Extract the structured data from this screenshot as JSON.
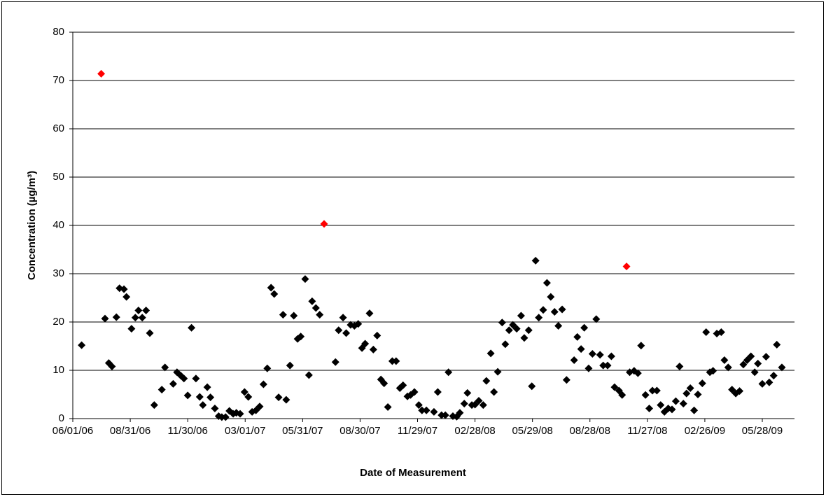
{
  "chart_data": {
    "type": "scatter",
    "xlabel": "Date of Measurement",
    "ylabel": "Concentration (µg/m³)",
    "xlim": [
      "06/01/06",
      "07/18/09"
    ],
    "xticks": [
      "06/01/06",
      "08/31/06",
      "11/30/06",
      "03/01/07",
      "05/31/07",
      "08/30/07",
      "11/29/07",
      "02/28/08",
      "05/29/08",
      "08/28/08",
      "11/27/08",
      "02/26/09",
      "05/28/09"
    ],
    "ylim": [
      0,
      80
    ],
    "yticks": [
      0,
      10,
      20,
      30,
      40,
      50,
      60,
      70,
      80
    ],
    "grid": true,
    "series": [
      {
        "color": "#000000",
        "x": [
          "06/15/06",
          "07/22/06",
          "07/28/06",
          "08/02/06",
          "08/09/06",
          "08/14/06",
          "08/21/06",
          "08/25/06",
          "09/02/06",
          "09/08/06",
          "09/13/06",
          "09/19/06",
          "09/25/06",
          "10/01/06",
          "10/08/06",
          "10/20/06",
          "10/25/06",
          "11/07/06",
          "11/13/06",
          "11/19/06",
          "11/24/06",
          "11/30/06",
          "12/06/06",
          "12/13/06",
          "12/19/06",
          "12/24/06",
          "12/31/06",
          "01/05/07",
          "01/12/07",
          "01/18/07",
          "01/23/07",
          "01/29/07",
          "02/04/07",
          "02/10/07",
          "02/15/07",
          "02/21/07",
          "02/28/07",
          "03/06/07",
          "03/12/07",
          "03/18/07",
          "03/24/07",
          "03/30/07",
          "04/05/07",
          "04/11/07",
          "04/16/07",
          "04/23/07",
          "04/30/07",
          "05/05/07",
          "05/11/07",
          "05/17/07",
          "05/23/07",
          "05/28/07",
          "06/04/07",
          "06/10/07",
          "06/15/07",
          "06/21/07",
          "06/27/07",
          "07/22/07",
          "07/27/07",
          "08/03/07",
          "08/08/07",
          "08/15/07",
          "08/21/07",
          "08/27/07",
          "09/02/07",
          "09/07/07",
          "09/14/07",
          "09/20/07",
          "09/26/07",
          "10/02/07",
          "10/07/07",
          "10/13/07",
          "10/20/07",
          "10/26/07",
          "11/01/07",
          "11/06/07",
          "11/13/07",
          "11/18/07",
          "11/24/07",
          "12/01/07",
          "12/06/07",
          "12/13/07",
          "12/25/07",
          "12/31/07",
          "01/06/08",
          "01/12/08",
          "01/17/08",
          "01/24/08",
          "01/30/08",
          "02/04/08",
          "02/11/08",
          "02/16/08",
          "02/23/08",
          "02/28/08",
          "03/05/08",
          "03/12/08",
          "03/17/08",
          "03/24/08",
          "03/29/08",
          "04/04/08",
          "04/11/08",
          "04/16/08",
          "04/22/08",
          "04/28/08",
          "05/04/08",
          "05/11/08",
          "05/16/08",
          "05/23/08",
          "05/28/08",
          "06/03/08",
          "06/08/08",
          "06/15/08",
          "06/21/08",
          "06/27/08",
          "07/03/08",
          "07/09/08",
          "07/15/08",
          "07/22/08",
          "08/03/08",
          "08/08/08",
          "08/14/08",
          "08/19/08",
          "08/26/08",
          "09/01/08",
          "09/07/08",
          "09/13/08",
          "09/18/08",
          "09/25/08",
          "10/01/08",
          "10/06/08",
          "10/13/08",
          "10/18/08",
          "10/30/08",
          "11/06/08",
          "11/12/08",
          "11/17/08",
          "11/24/08",
          "11/30/08",
          "12/05/08",
          "12/12/08",
          "12/18/08",
          "12/24/08",
          "12/30/08",
          "01/05/09",
          "01/11/09",
          "01/17/09",
          "01/23/09",
          "01/28/09",
          "02/03/09",
          "02/09/09",
          "02/15/09",
          "02/22/09",
          "02/28/09",
          "03/06/09",
          "03/11/09",
          "03/17/09",
          "03/24/09",
          "03/29/09",
          "04/04/09",
          "04/10/09",
          "04/16/09",
          "04/22/09",
          "04/28/09",
          "05/04/09",
          "05/10/09",
          "05/16/09",
          "05/21/09",
          "05/28/09",
          "06/03/09",
          "06/08/09",
          "06/15/09",
          "06/20/09",
          "06/28/09"
        ],
        "values": [
          15.2,
          20.7,
          11.5,
          10.8,
          21,
          27,
          26.8,
          25.2,
          18.6,
          20.9,
          22.4,
          20.9,
          22.4,
          17.7,
          2.8,
          6,
          10.6,
          7.2,
          9.6,
          8.9,
          8.3,
          4.8,
          18.8,
          8.3,
          4.5,
          2.8,
          6.5,
          4.4,
          2.1,
          0.5,
          0.3,
          0.3,
          1.6,
          1,
          1.2,
          1,
          5.5,
          4.5,
          1.4,
          1.7,
          2.5,
          7.1,
          10.4,
          27.1,
          25.8,
          4.4,
          21.5,
          3.9,
          11,
          21.3,
          16.5,
          17,
          28.9,
          9,
          24.3,
          22.9,
          21.5,
          11.7,
          18.3,
          20.9,
          17.7,
          19.4,
          19.2,
          19.6,
          14.6,
          15.5,
          21.8,
          14.3,
          17.2,
          8.1,
          7.3,
          2.4,
          11.9,
          11.9,
          6.3,
          6.9,
          4.6,
          4.9,
          5.5,
          2.8,
          1.7,
          1.7,
          1.4,
          5.5,
          0.7,
          0.7,
          9.6,
          0.5,
          0.4,
          1.2,
          3.1,
          5.3,
          2.8,
          2.9,
          3.7,
          2.8,
          7.8,
          13.5,
          5.5,
          9.7,
          19.9,
          15.4,
          18.3,
          19.4,
          18.6,
          21.3,
          16.7,
          18.3,
          6.7,
          32.7,
          20.9,
          22.5,
          28.1,
          25.2,
          22.1,
          19.2,
          22.6,
          8,
          12.1,
          16.9,
          14.4,
          18.8,
          10.4,
          13.4,
          20.6,
          13.2,
          11,
          11,
          12.9,
          6.5,
          5.8,
          4.9,
          9.6,
          9.9,
          9.4,
          15.1,
          4.9,
          2.1,
          5.8,
          5.8,
          2.8,
          1.4,
          2.1,
          1.9,
          3.6,
          10.8,
          3.1,
          5.2,
          6.3,
          1.7,
          5,
          7.3,
          17.9,
          9.6,
          9.9,
          17.6,
          17.9,
          12.1,
          10.6,
          6,
          5.2,
          5.7,
          11.2,
          12.1,
          12.9,
          9.6,
          11.4,
          7.2,
          12.8,
          7.5,
          8.9,
          15.3,
          10.6
        ]
      },
      {
        "color": "#ff0000",
        "x": [
          "07/16/06",
          "07/04/07",
          "10/25/08"
        ],
        "values": [
          71.4,
          40.3,
          31.5
        ]
      }
    ]
  }
}
